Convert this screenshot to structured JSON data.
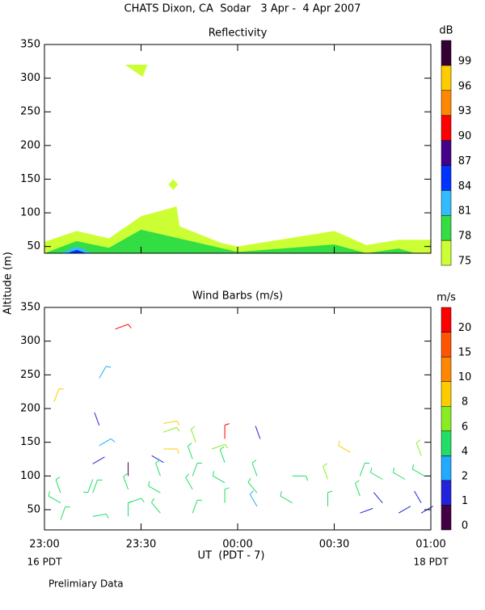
{
  "title": "CHATS Dixon, CA  Sodar   3 Apr -  4 Apr 2007",
  "footnote": "Prelimiary Data",
  "chart_data": [
    {
      "type": "contour",
      "title": "Reflectivity",
      "xlim": [
        0,
        120
      ],
      "ylim": [
        40,
        350
      ],
      "yticks": [
        50,
        100,
        150,
        200,
        250,
        300,
        350
      ],
      "colorbar": {
        "label": "dB",
        "levels": [
          {
            "value": 75,
            "color": "#ccff33",
            "x": [
              0,
              10,
              20,
              30,
              40,
              41,
              42,
              55,
              60,
              90,
              100,
              110,
              120
            ],
            "tops": [
              57,
              73,
              62,
              95,
              108,
              110,
              80,
              55,
              50,
              73,
              52,
              60,
              60
            ],
            "blobs": [
              {
                "x": [
                  25,
                  32,
                  30.5
                ],
                "y": [
                  320,
                  320,
                  302
                ]
              },
              {
                "x": [
                  38.5,
                  40,
                  41.5,
                  40
                ],
                "y": [
                  142,
                  150,
                  142,
                  134
                ]
              }
            ]
          },
          {
            "value": 78,
            "color": "#33dd44",
            "x": [
              0,
              10,
              20,
              30,
              60,
              90,
              100,
              110,
              115,
              120
            ],
            "tops": [
              40,
              58,
              48,
              75,
              42,
              53,
              40,
              47,
              40,
              40
            ]
          },
          {
            "value": 81,
            "color": "#33bbff",
            "x": [
              5,
              10,
              15
            ],
            "tops": [
              40,
              50,
              40
            ]
          },
          {
            "value": 84,
            "color": "#0033ff",
            "x": [
              7,
              10,
              13
            ],
            "tops": [
              40,
              45,
              40
            ]
          },
          {
            "value": 87,
            "color": "#440088"
          },
          {
            "value": 90,
            "color": "#ff0000"
          },
          {
            "value": 93,
            "color": "#ff8800"
          },
          {
            "value": 96,
            "color": "#ffcc00"
          },
          {
            "value": 99,
            "color": "#330033"
          }
        ]
      }
    },
    {
      "type": "barbs",
      "title": "Wind Barbs (m/s)",
      "y_label": "Altitude (m)",
      "x_label": "UT  (PDT - 7)",
      "x_sublabels": [
        "16 PDT",
        "18 PDT"
      ],
      "xlim": [
        0,
        120
      ],
      "xticks": [
        {
          "value": 0,
          "label": "23:00"
        },
        {
          "value": 30,
          "label": "23:30"
        },
        {
          "value": 60,
          "label": "00:00"
        },
        {
          "value": 90,
          "label": "00:30"
        },
        {
          "value": 120,
          "label": "01:00"
        }
      ],
      "ylim": [
        20,
        350
      ],
      "yticks": [
        50,
        100,
        150,
        200,
        250,
        300,
        350
      ],
      "colorbar": {
        "label": "m/s",
        "levels": [
          {
            "value": 0,
            "color": "#440044"
          },
          {
            "value": 1,
            "color": "#2222dd"
          },
          {
            "value": 2,
            "color": "#22aaff"
          },
          {
            "value": 4,
            "color": "#22dd66"
          },
          {
            "value": 6,
            "color": "#88ee22"
          },
          {
            "value": 8,
            "color": "#ffcc00"
          },
          {
            "value": 10,
            "color": "#ff8800"
          },
          {
            "value": 15,
            "color": "#ff5500"
          },
          {
            "value": 20,
            "color": "#ff0000"
          }
        ]
      },
      "barbs": {
        "x": [
          3,
          17,
          22,
          17,
          17,
          15,
          26,
          37,
          37,
          37,
          37,
          47,
          52,
          56,
          67,
          95,
          117,
          5,
          5,
          5,
          15,
          15,
          15,
          26,
          26,
          26,
          36,
          36,
          36,
          46,
          46,
          46,
          46,
          56,
          56,
          56,
          66,
          66,
          66,
          77,
          77,
          88,
          88,
          98,
          98,
          98,
          105,
          105,
          110,
          112,
          117,
          117,
          118
        ],
        "altitude": [
          210,
          245,
          318,
          175,
          145,
          118,
          100,
          178,
          165,
          140,
          120,
          150,
          140,
          155,
          155,
          135,
          130,
          75,
          60,
          35,
          95,
          75,
          40,
          80,
          60,
          40,
          100,
          75,
          45,
          125,
          100,
          80,
          45,
          120,
          90,
          60,
          100,
          75,
          55,
          100,
          60,
          95,
          55,
          100,
          70,
          45,
          95,
          60,
          45,
          95,
          60,
          45,
          100
        ],
        "speed": [
          8,
          3,
          21,
          1.5,
          3,
          1.5,
          0.5,
          9,
          7,
          8,
          1.5,
          6,
          6,
          20,
          1.5,
          8,
          6,
          4.5,
          4.5,
          4.5,
          4.5,
          4.5,
          4.5,
          4.5,
          4.5,
          4.5,
          4.5,
          4.5,
          4.5,
          4.5,
          4.5,
          4.5,
          4.5,
          5,
          5,
          4.5,
          5,
          4.5,
          3,
          4.5,
          4.5,
          6,
          4.5,
          4.5,
          4.5,
          1.5,
          4.5,
          1.5,
          1.5,
          4.5,
          1.5,
          1.5,
          4.5
        ],
        "direction": [
          20,
          30,
          70,
          340,
          60,
          60,
          0,
          80,
          70,
          90,
          300,
          340,
          70,
          0,
          340,
          300,
          340,
          340,
          300,
          20,
          200,
          20,
          80,
          340,
          70,
          0,
          340,
          300,
          320,
          340,
          20,
          330,
          20,
          340,
          300,
          0,
          340,
          320,
          330,
          90,
          300,
          340,
          0,
          20,
          340,
          70,
          300,
          320,
          60,
          300,
          330,
          60,
          300
        ]
      }
    }
  ]
}
